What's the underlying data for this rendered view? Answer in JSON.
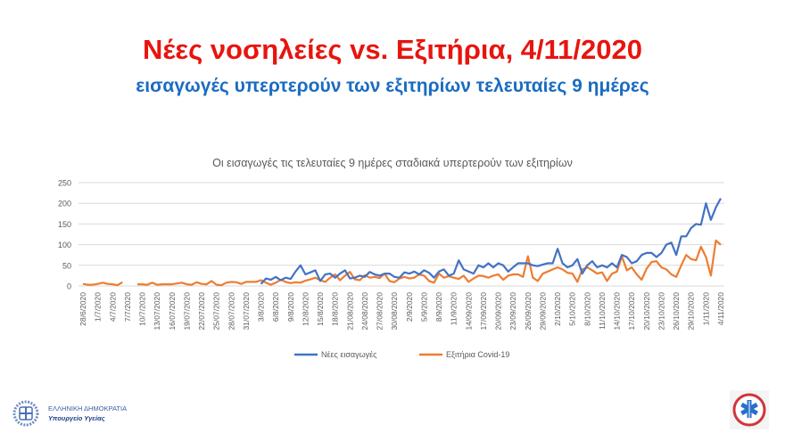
{
  "header": {
    "title": "Νέες νοσηλείες vs. Εξιτήρια, 4/11/2020",
    "subtitle": "εισαγωγές υπερτερούν των εξιτηρίων τελευταίες 9 ημέρες"
  },
  "footer": {
    "org_line1": "ΕΛΛΗΝΙΚΗ ΔΗΜΟΚΡΑΤΙΑ",
    "org_line2": "Υπουργείο Υγείας",
    "left_logo": "greek-republic-emblem",
    "right_logo": "ekab-star-of-life-emblem"
  },
  "chart_data": {
    "type": "line",
    "title": "Οι εισαγωγές τις τελευταίες 9 ημέρες σταδιακά υπερτερούν των εξιτηρίων",
    "xlabel": "",
    "ylabel": "",
    "ylim": [
      0,
      250
    ],
    "y_ticks": [
      0,
      50,
      100,
      150,
      200,
      250
    ],
    "grid": "horizontal",
    "legend_position": "bottom",
    "x_start": "28/6/2020",
    "x_end": "4/11/2020",
    "x_interval": "daily",
    "x_tick_labels": [
      "28/6/2020",
      "1/7/2020",
      "4/7/2020",
      "7/7/2020",
      "10/7/2020",
      "13/07/2020",
      "16/07/2020",
      "19/07/2020",
      "22/07/2020",
      "25/07/2020",
      "28/07/2020",
      "31/07/2020",
      "3/8/2020",
      "6/8/2020",
      "9/8/2020",
      "12/8/2020",
      "15/8/2020",
      "18/8/2020",
      "21/08/2020",
      "24/08/2020",
      "27/08/2020",
      "30/08/2020",
      "2/9/2020",
      "5/9/2020",
      "8/9/2020",
      "11/9/2020",
      "14/09/2020",
      "17/09/2020",
      "20/09/2020",
      "23/09/2020",
      "26/09/2020",
      "29/09/2020",
      "2/10/2020",
      "5/10/2020",
      "8/10/2020",
      "11/10/2020",
      "14/10/2020",
      "17/10/2020",
      "20/10/2020",
      "23/10/2020",
      "26/10/2020",
      "29/10/2020",
      "1/11/2020",
      "4/11/2020"
    ],
    "series": [
      {
        "name": "Νέες εισαγωγές",
        "color": "#4472c4",
        "values": [
          null,
          null,
          null,
          null,
          null,
          null,
          null,
          null,
          null,
          null,
          null,
          null,
          null,
          null,
          null,
          null,
          null,
          null,
          null,
          null,
          null,
          null,
          null,
          null,
          null,
          null,
          null,
          null,
          null,
          null,
          null,
          null,
          null,
          null,
          null,
          null,
          5,
          18,
          15,
          22,
          14,
          20,
          17,
          35,
          50,
          28,
          33,
          38,
          12,
          28,
          30,
          20,
          30,
          38,
          18,
          20,
          25,
          22,
          34,
          28,
          25,
          30,
          30,
          22,
          20,
          33,
          30,
          35,
          28,
          38,
          32,
          20,
          35,
          40,
          25,
          30,
          62,
          40,
          35,
          30,
          50,
          45,
          55,
          45,
          55,
          50,
          35,
          45,
          55,
          55,
          55,
          50,
          48,
          52,
          55,
          55,
          90,
          55,
          45,
          50,
          65,
          30,
          50,
          60,
          45,
          50,
          45,
          55,
          45,
          75,
          70,
          55,
          60,
          75,
          80,
          80,
          70,
          80,
          100,
          105,
          75,
          120,
          120,
          140,
          150,
          148,
          200,
          160,
          190,
          212
        ]
      },
      {
        "name": "Εξιτήρια Covid-19",
        "color": "#ed7d31",
        "values": [
          5,
          3,
          3,
          5,
          8,
          5,
          4,
          2,
          9,
          null,
          null,
          4,
          4,
          3,
          8,
          3,
          4,
          4,
          4,
          6,
          8,
          4,
          3,
          9,
          5,
          4,
          12,
          3,
          2,
          8,
          10,
          9,
          5,
          10,
          10,
          10,
          14,
          8,
          3,
          8,
          15,
          10,
          7,
          9,
          8,
          13,
          16,
          20,
          14,
          10,
          20,
          28,
          14,
          25,
          34,
          16,
          14,
          26,
          20,
          22,
          19,
          30,
          12,
          9,
          18,
          22,
          18,
          20,
          28,
          25,
          12,
          8,
          30,
          20,
          24,
          20,
          17,
          25,
          10,
          18,
          25,
          24,
          20,
          25,
          28,
          15,
          25,
          28,
          28,
          22,
          72,
          20,
          12,
          30,
          35,
          40,
          45,
          40,
          32,
          30,
          10,
          40,
          45,
          38,
          30,
          33,
          12,
          30,
          35,
          72,
          38,
          45,
          28,
          15,
          42,
          58,
          60,
          45,
          40,
          28,
          22,
          50,
          75,
          65,
          62,
          95,
          70,
          25,
          110,
          100
        ]
      }
    ]
  }
}
